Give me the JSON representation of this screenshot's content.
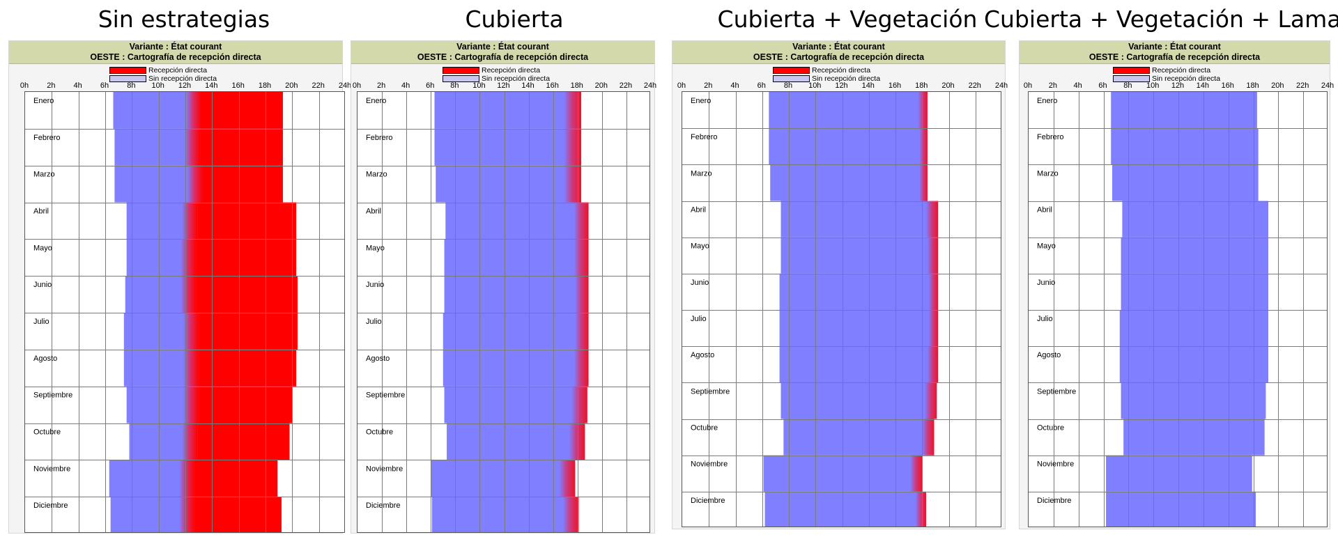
{
  "panels": [
    {
      "caption": "Sin estrategias",
      "title": "Variante : État courant",
      "subtitle": "OESTE : Cartografía de recepción directa"
    },
    {
      "caption": "Cubierta",
      "title": "Variante : État courant",
      "subtitle": "OESTE : Cartografía de recepción directa"
    },
    {
      "caption": "Cubierta + Vegetación",
      "title": "Variante : État courant",
      "subtitle": "OESTE : Cartografía de recepción directa"
    },
    {
      "caption": "Cubierta + Vegetación + Lamas",
      "title": "Variante : État courant",
      "subtitle": "OESTE : Cartografía de recepción directa"
    }
  ],
  "legend": {
    "direct": "Recepción directa",
    "no_direct": "Sin recepción directa",
    "colors": {
      "direct": "#ff0000",
      "no_direct": "#7f7fff",
      "no_direct_swatch": "#c8c8f0"
    }
  },
  "chart_data": [
    {
      "type": "heatmap",
      "title": "Variante : État courant",
      "subtitle": "OESTE : Cartografía de recepción directa",
      "x_ticks": [
        "0h",
        "2h",
        "4h",
        "6h",
        "8h",
        "10h",
        "12h",
        "14h",
        "16h",
        "18h",
        "20h",
        "22h",
        "24h"
      ],
      "xlim": [
        0,
        24
      ],
      "months": [
        "Enero",
        "Febrero",
        "Marzo",
        "Abril",
        "Mayo",
        "Junio",
        "Julio",
        "Agosto",
        "Septiembre",
        "Octubre",
        "Noviembre",
        "Diciembre"
      ],
      "daylight_start_h": [
        6.6,
        6.7,
        6.7,
        7.6,
        7.6,
        7.5,
        7.4,
        7.4,
        7.6,
        7.8,
        6.3,
        6.4
      ],
      "daylight_end_h": [
        19.3,
        19.3,
        19.3,
        20.3,
        20.3,
        20.4,
        20.4,
        20.3,
        20.0,
        19.8,
        18.9,
        19.2
      ],
      "direct_start_h": [
        13.2,
        13.1,
        13.3,
        12.9,
        12.8,
        12.8,
        13.0,
        13.0,
        13.0,
        12.9,
        12.7,
        12.7
      ],
      "legend": [
        "Recepción directa",
        "Sin recepción directa"
      ],
      "grid": true
    },
    {
      "type": "heatmap",
      "title": "Variante : État courant",
      "subtitle": "OESTE : Cartografía de recepción directa",
      "x_ticks": [
        "0h",
        "2h",
        "4h",
        "6h",
        "8h",
        "10h",
        "12h",
        "14h",
        "16h",
        "18h",
        "20h",
        "22h",
        "24h"
      ],
      "xlim": [
        0,
        24
      ],
      "months": [
        "Enero",
        "Febrero",
        "Marzo",
        "Abril",
        "Mayo",
        "Junio",
        "Julio",
        "Agosto",
        "Septiembre",
        "Octubre",
        "Noviembre",
        "Diciembre"
      ],
      "daylight_start_h": [
        6.3,
        6.3,
        6.4,
        7.2,
        7.1,
        7.1,
        7.0,
        7.0,
        7.1,
        7.3,
        6.0,
        6.1
      ],
      "daylight_end_h": [
        18.3,
        18.3,
        18.3,
        18.9,
        18.9,
        18.9,
        18.9,
        18.9,
        18.8,
        18.6,
        17.8,
        18.1
      ],
      "direct_start_h": [
        16.9,
        16.9,
        16.9,
        17.7,
        17.7,
        17.8,
        17.8,
        17.7,
        17.5,
        17.3,
        16.5,
        16.8
      ],
      "legend": [
        "Recepción directa",
        "Sin recepción directa"
      ],
      "grid": true
    },
    {
      "type": "heatmap",
      "title": "Variante : État courant",
      "subtitle": "OESTE : Cartografía de recepción directa",
      "x_ticks": [
        "0h",
        "2h",
        "4h",
        "6h",
        "8h",
        "10h",
        "12h",
        "14h",
        "16h",
        "18h",
        "20h",
        "22h",
        "24h"
      ],
      "xlim": [
        0,
        24
      ],
      "months": [
        "Enero",
        "Febrero",
        "Marzo",
        "Abril",
        "Mayo",
        "Junio",
        "Julio",
        "Agosto",
        "Septiembre",
        "Octubre",
        "Noviembre",
        "Diciembre"
      ],
      "daylight_start_h": [
        6.5,
        6.5,
        6.6,
        7.4,
        7.4,
        7.3,
        7.3,
        7.3,
        7.4,
        7.6,
        6.1,
        6.2
      ],
      "daylight_end_h": [
        18.4,
        18.4,
        18.4,
        19.2,
        19.2,
        19.2,
        19.2,
        19.2,
        19.1,
        18.9,
        18.0,
        18.3
      ],
      "direct_start_h": [
        17.7,
        17.8,
        17.8,
        18.3,
        18.4,
        18.5,
        18.5,
        18.4,
        18.2,
        18.0,
        17.1,
        17.5
      ],
      "legend": [
        "Recepción directa",
        "Sin recepción directa"
      ],
      "grid": true
    },
    {
      "type": "heatmap",
      "title": "Variante : État courant",
      "subtitle": "OESTE : Cartografía de recepción directa",
      "x_ticks": [
        "0h",
        "2h",
        "4h",
        "6h",
        "8h",
        "10h",
        "12h",
        "14h",
        "16h",
        "18h",
        "20h",
        "22h",
        "24h"
      ],
      "xlim": [
        0,
        24
      ],
      "months": [
        "Enero",
        "Febrero",
        "Marzo",
        "Abril",
        "Mayo",
        "Junio",
        "Julio",
        "Agosto",
        "Septiembre",
        "Octubre",
        "Noviembre",
        "Diciembre"
      ],
      "daylight_start_h": [
        6.6,
        6.6,
        6.7,
        7.5,
        7.4,
        7.4,
        7.3,
        7.3,
        7.4,
        7.6,
        6.2,
        6.2
      ],
      "daylight_end_h": [
        18.3,
        18.4,
        18.4,
        19.2,
        19.2,
        19.2,
        19.2,
        19.2,
        19.0,
        18.9,
        17.9,
        18.2
      ],
      "direct_start_h": [
        null,
        null,
        null,
        null,
        null,
        null,
        null,
        null,
        null,
        null,
        null,
        null
      ],
      "legend": [
        "Recepción directa",
        "Sin recepción directa"
      ],
      "grid": true
    }
  ]
}
